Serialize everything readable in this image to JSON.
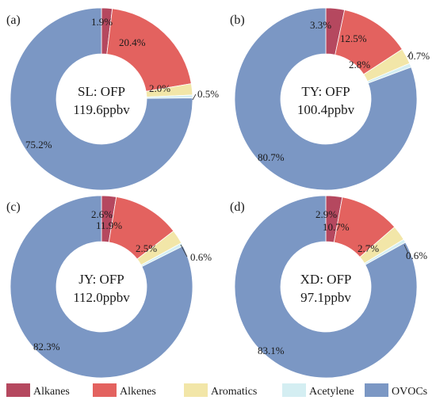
{
  "chart_data": {
    "type": "pie",
    "legend": {
      "position": "bottom",
      "entries": [
        {
          "name": "Alkanes",
          "color": "#b5485f"
        },
        {
          "name": "Alkenes",
          "color": "#e3625f"
        },
        {
          "name": "Aromatics",
          "color": "#f2e6a8"
        },
        {
          "name": "Acetylene",
          "color": "#d4eef2"
        },
        {
          "name": "OVOCs",
          "color": "#7b97c4"
        }
      ]
    },
    "panels": [
      {
        "letter": "(a)",
        "center_line1": "SL: OFP",
        "center_line2": "119.6ppbv",
        "slices": [
          {
            "category": "Alkanes",
            "value": 1.9,
            "label": "1.9%"
          },
          {
            "category": "Alkenes",
            "value": 20.4,
            "label": "20.4%"
          },
          {
            "category": "Aromatics",
            "value": 2.0,
            "label": "2.0%"
          },
          {
            "category": "Acetylene",
            "value": 0.5,
            "label": "0.5%"
          },
          {
            "category": "OVOCs",
            "value": 75.2,
            "label": "75.2%"
          }
        ]
      },
      {
        "letter": "(b)",
        "center_line1": "TY: OFP",
        "center_line2": "100.4ppbv",
        "slices": [
          {
            "category": "Alkanes",
            "value": 3.3,
            "label": "3.3%"
          },
          {
            "category": "Alkenes",
            "value": 12.5,
            "label": "12.5%"
          },
          {
            "category": "Aromatics",
            "value": 2.8,
            "label": "2.8%"
          },
          {
            "category": "Acetylene",
            "value": 0.7,
            "label": "0.7%"
          },
          {
            "category": "OVOCs",
            "value": 80.7,
            "label": "80.7%"
          }
        ]
      },
      {
        "letter": "(c)",
        "center_line1": "JY: OFP",
        "center_line2": "112.0ppbv",
        "slices": [
          {
            "category": "Alkanes",
            "value": 2.6,
            "label": "2.6%"
          },
          {
            "category": "Alkenes",
            "value": 11.9,
            "label": "11.9%"
          },
          {
            "category": "Aromatics",
            "value": 2.5,
            "label": "2.5%"
          },
          {
            "category": "Acetylene",
            "value": 0.6,
            "label": "0.6%"
          },
          {
            "category": "OVOCs",
            "value": 82.3,
            "label": "82.3%"
          }
        ]
      },
      {
        "letter": "(d)",
        "center_line1": "XD: OFP",
        "center_line2": "97.1ppbv",
        "slices": [
          {
            "category": "Alkanes",
            "value": 2.9,
            "label": "2.9%"
          },
          {
            "category": "Alkenes",
            "value": 10.7,
            "label": "10.7%"
          },
          {
            "category": "Aromatics",
            "value": 2.7,
            "label": "2.7%"
          },
          {
            "category": "Acetylene",
            "value": 0.6,
            "label": "0.6%"
          },
          {
            "category": "OVOCs",
            "value": 83.1,
            "label": "83.1%"
          }
        ]
      }
    ]
  }
}
